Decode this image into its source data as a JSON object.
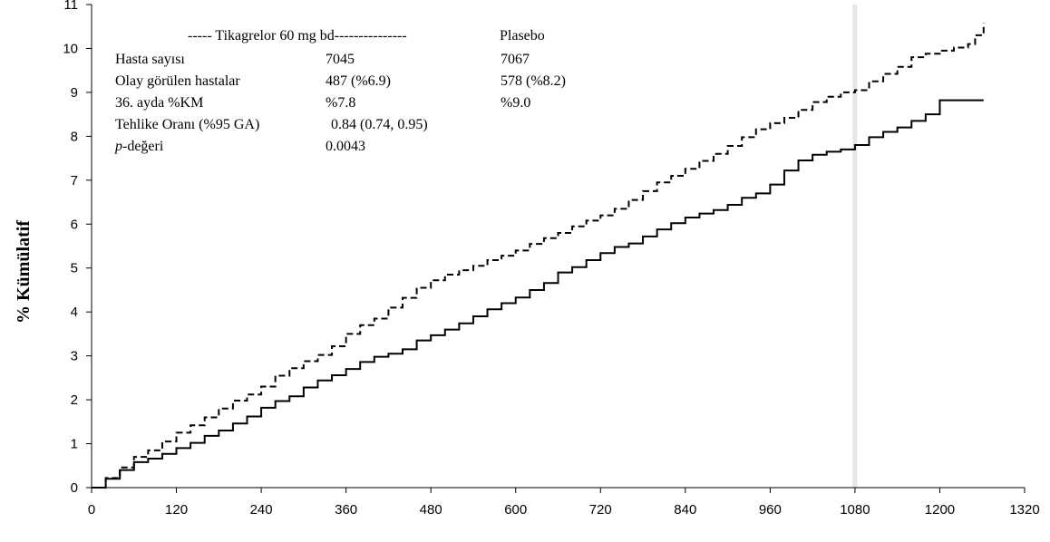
{
  "chart_data": {
    "type": "line",
    "ylabel": "% Kümülatif",
    "xlabel": "",
    "xlim": [
      0,
      1320
    ],
    "ylim": [
      0,
      11
    ],
    "x_ticks": [
      0,
      120,
      240,
      360,
      480,
      600,
      720,
      840,
      960,
      1080,
      1200,
      1320
    ],
    "y_ticks": [
      0,
      1,
      2,
      3,
      4,
      5,
      6,
      7,
      8,
      9,
      10,
      11
    ],
    "reference_line_x": 1080,
    "grid": false,
    "legend": {
      "header_left": "----- Tikagrelor 60 mg bd---------------",
      "header_right": "Plasebo",
      "rows": [
        {
          "label": "Hasta sayısı",
          "ticagrelor": "7045",
          "placebo": "7067"
        },
        {
          "label": "Olay görülen hastalar",
          "ticagrelor": "487 (%6.9)",
          "placebo": "578 (%8.2)"
        },
        {
          "label": "36. ayda %KM",
          "ticagrelor": "%7.8",
          "placebo": "%9.0"
        },
        {
          "label": "Tehlike Oranı (%95 GA)",
          "ticagrelor": "0.84 (0.74, 0.95)",
          "placebo": ""
        },
        {
          "label_italic": "p",
          "label": "-değeri",
          "ticagrelor": "0.0043",
          "placebo": ""
        }
      ]
    },
    "series": [
      {
        "style": "solid",
        "color": "#000000",
        "x": [
          0,
          20,
          40,
          60,
          80,
          100,
          120,
          140,
          160,
          180,
          200,
          220,
          240,
          260,
          280,
          300,
          320,
          340,
          360,
          380,
          400,
          420,
          440,
          460,
          480,
          500,
          520,
          540,
          560,
          580,
          600,
          620,
          640,
          660,
          680,
          700,
          720,
          740,
          760,
          780,
          800,
          820,
          840,
          860,
          880,
          900,
          920,
          940,
          960,
          980,
          1000,
          1020,
          1040,
          1060,
          1080,
          1100,
          1120,
          1140,
          1160,
          1180,
          1200,
          1230,
          1262
        ],
        "values": [
          0,
          0.2,
          0.4,
          0.58,
          0.66,
          0.77,
          0.9,
          1.02,
          1.18,
          1.3,
          1.46,
          1.62,
          1.82,
          1.97,
          2.08,
          2.28,
          2.44,
          2.56,
          2.7,
          2.86,
          2.98,
          3.05,
          3.15,
          3.35,
          3.47,
          3.6,
          3.74,
          3.9,
          4.06,
          4.2,
          4.33,
          4.5,
          4.66,
          4.9,
          5.02,
          5.18,
          5.34,
          5.48,
          5.56,
          5.72,
          5.88,
          6.02,
          6.15,
          6.24,
          6.32,
          6.44,
          6.6,
          6.7,
          6.9,
          7.22,
          7.45,
          7.58,
          7.65,
          7.7,
          7.8,
          7.98,
          8.1,
          8.2,
          8.35,
          8.5,
          8.82,
          8.82,
          8.82
        ]
      },
      {
        "style": "dashed",
        "color": "#000000",
        "x": [
          0,
          20,
          40,
          60,
          80,
          100,
          120,
          140,
          160,
          180,
          200,
          220,
          240,
          260,
          280,
          300,
          320,
          340,
          360,
          380,
          400,
          420,
          440,
          460,
          480,
          500,
          520,
          540,
          560,
          580,
          600,
          620,
          640,
          660,
          680,
          700,
          720,
          740,
          760,
          780,
          800,
          820,
          840,
          860,
          880,
          900,
          920,
          940,
          960,
          980,
          1000,
          1020,
          1040,
          1060,
          1080,
          1100,
          1120,
          1140,
          1160,
          1180,
          1200,
          1220,
          1240,
          1250,
          1262
        ],
        "values": [
          0,
          0.22,
          0.46,
          0.7,
          0.85,
          1.05,
          1.25,
          1.42,
          1.6,
          1.8,
          1.98,
          2.12,
          2.3,
          2.55,
          2.72,
          2.88,
          3.02,
          3.22,
          3.5,
          3.7,
          3.85,
          4.1,
          4.32,
          4.55,
          4.72,
          4.85,
          4.95,
          5.05,
          5.18,
          5.28,
          5.4,
          5.55,
          5.68,
          5.8,
          5.95,
          6.08,
          6.2,
          6.35,
          6.55,
          6.75,
          6.95,
          7.1,
          7.26,
          7.44,
          7.6,
          7.78,
          7.98,
          8.16,
          8.3,
          8.42,
          8.6,
          8.78,
          8.9,
          9.0,
          9.05,
          9.25,
          9.42,
          9.58,
          9.8,
          9.88,
          9.95,
          10.02,
          10.1,
          10.3,
          10.58
        ]
      }
    ]
  }
}
